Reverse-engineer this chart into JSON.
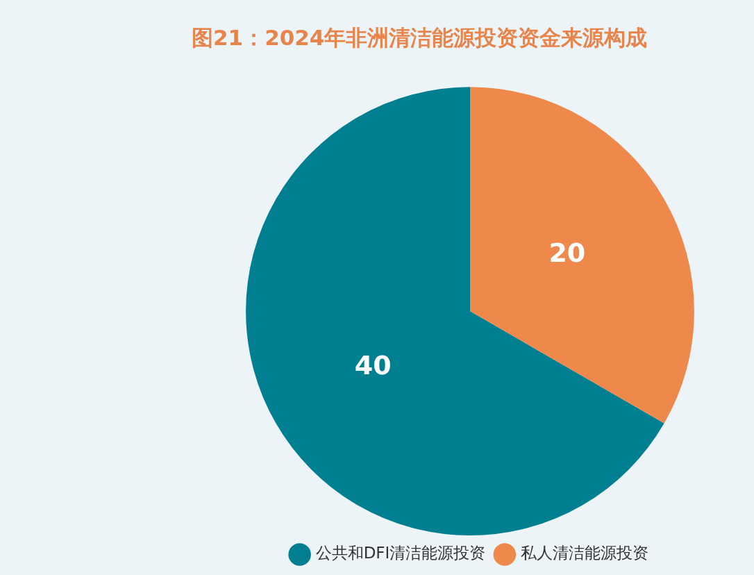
{
  "chart_data": {
    "type": "pie",
    "title": "图21：2024年非洲清洁能源投资资金来源构成",
    "categories": [
      "公共和DFI清洁能源投资",
      "私人清洁能源投资"
    ],
    "values": [
      40,
      20
    ],
    "colors": [
      "#007f91",
      "#ee884b"
    ],
    "data_labels": true,
    "legend": "bottom"
  }
}
